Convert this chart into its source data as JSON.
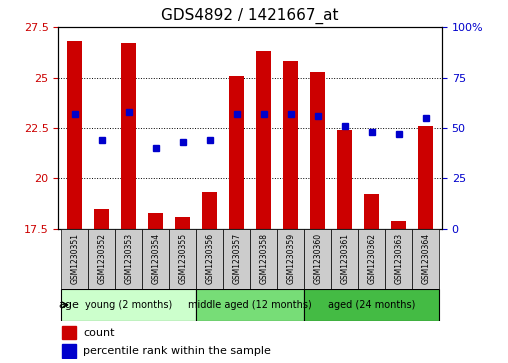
{
  "title": "GDS4892 / 1421667_at",
  "samples": [
    "GSM1230351",
    "GSM1230352",
    "GSM1230353",
    "GSM1230354",
    "GSM1230355",
    "GSM1230356",
    "GSM1230357",
    "GSM1230358",
    "GSM1230359",
    "GSM1230360",
    "GSM1230361",
    "GSM1230362",
    "GSM1230363",
    "GSM1230364"
  ],
  "count_values": [
    26.8,
    18.5,
    26.7,
    18.3,
    18.1,
    19.3,
    25.1,
    26.3,
    25.8,
    25.3,
    22.4,
    19.2,
    17.9,
    22.6
  ],
  "percentile_values": [
    57,
    44,
    58,
    40,
    43,
    44,
    57,
    57,
    57,
    56,
    51,
    48,
    47,
    55
  ],
  "ylim_left": [
    17.5,
    27.5
  ],
  "ylim_right": [
    0,
    100
  ],
  "yticks_left": [
    17.5,
    20.0,
    22.5,
    25.0,
    27.5
  ],
  "yticks_right": [
    0,
    25,
    50,
    75,
    100
  ],
  "bar_color": "#cc0000",
  "dot_color": "#0000cc",
  "bar_bottom": 17.5,
  "groups": [
    {
      "label": "young (2 months)",
      "start": 0,
      "end": 5
    },
    {
      "label": "middle aged (12 months)",
      "start": 5,
      "end": 9
    },
    {
      "label": "aged (24 months)",
      "start": 9,
      "end": 14
    }
  ],
  "group_colors": [
    "#ccffcc",
    "#77dd77",
    "#44bb44"
  ],
  "sample_box_color": "#cccccc",
  "age_label": "age",
  "legend_count_label": "count",
  "legend_percentile_label": "percentile rank within the sample",
  "title_fontsize": 11,
  "tick_fontsize": 8,
  "sample_fontsize": 5.5,
  "group_fontsize": 7,
  "legend_fontsize": 8
}
